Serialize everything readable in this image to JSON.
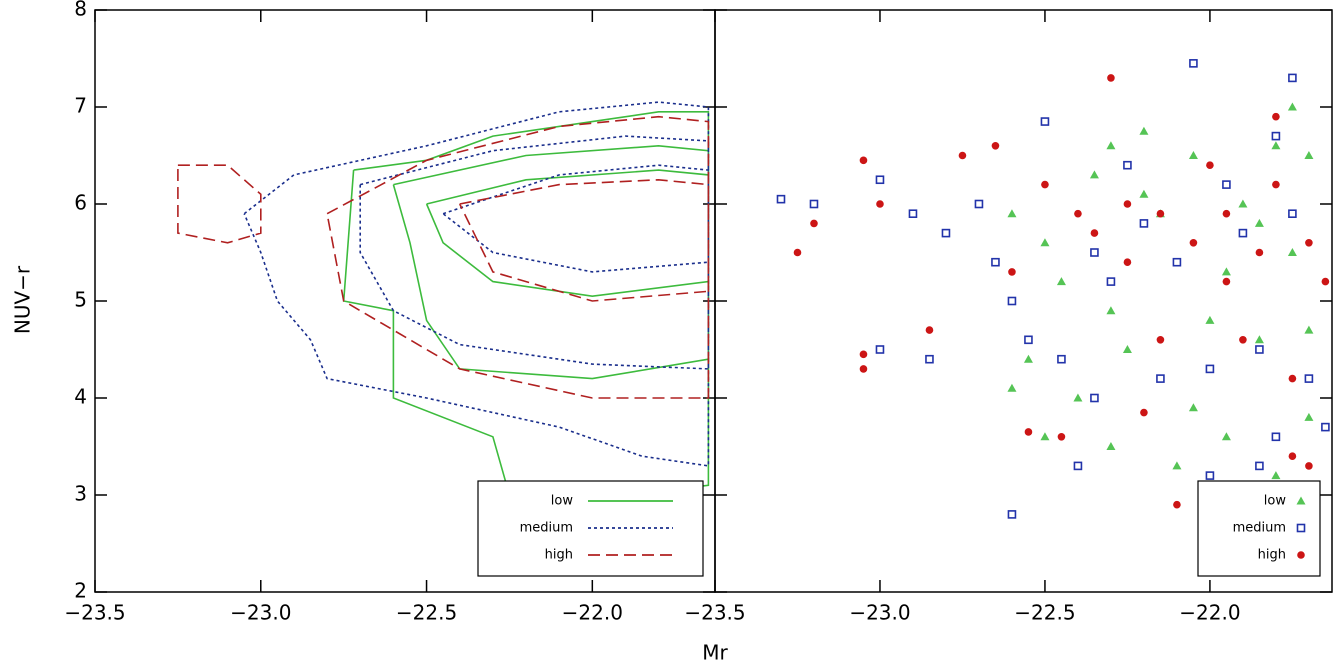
{
  "chart_data": [
    {
      "type": "line",
      "x_label": "Mr",
      "y_label": "NUV−r",
      "xlim": [
        -23.5,
        -21.63
      ],
      "ylim": [
        2,
        8
      ],
      "xticks": [
        {
          "value": -23.5,
          "label": "−23.5"
        },
        {
          "value": -23.0,
          "label": "−23.0"
        },
        {
          "value": -22.5,
          "label": "−22.5"
        },
        {
          "value": -22.0,
          "label": "−22.0"
        }
      ],
      "yticks": [
        2,
        3,
        4,
        5,
        6,
        7,
        8
      ],
      "legend": "lower right",
      "series": [
        {
          "name": "low",
          "color": "#3dbb3d",
          "dash": "solid",
          "x": [
            -22.72,
            -22.5,
            -22.3,
            -22.0,
            -21.8,
            -21.65,
            -21.65,
            -21.9,
            -22.25,
            -22.3,
            -22.6,
            -22.6,
            -22.75,
            -22.72,
            null,
            -22.6,
            -22.2,
            -21.8,
            -21.65,
            -21.65,
            -22.0,
            -22.4,
            -22.5,
            -22.55,
            -22.6,
            null,
            -22.5,
            -22.2,
            -21.8,
            -21.65,
            -21.65,
            -22.0,
            -22.3,
            -22.45,
            -22.5
          ],
          "values": [
            6.35,
            6.45,
            6.7,
            6.85,
            6.95,
            6.95,
            3.1,
            3.0,
            3.0,
            3.6,
            4.0,
            4.9,
            5.0,
            6.35,
            null,
            6.2,
            6.5,
            6.6,
            6.55,
            4.4,
            4.2,
            4.3,
            4.8,
            5.6,
            6.2,
            null,
            6.0,
            6.25,
            6.35,
            6.3,
            5.2,
            5.05,
            5.2,
            5.6,
            6.0
          ]
        },
        {
          "name": "medium",
          "color": "#1a2e8c",
          "dash": "dotted",
          "x": [
            -23.05,
            -22.9,
            -22.5,
            -22.1,
            -21.8,
            -21.65,
            -21.65,
            -21.85,
            -22.1,
            -22.5,
            -22.8,
            -22.85,
            -22.95,
            -23.0,
            -23.05,
            null,
            -22.7,
            -22.3,
            -21.9,
            -21.65,
            -21.65,
            -22.0,
            -22.4,
            -22.6,
            -22.7,
            -22.7,
            null,
            -22.45,
            -22.1,
            -21.8,
            -21.65,
            -21.65,
            -22.0,
            -22.3,
            -22.45
          ],
          "values": [
            5.9,
            6.3,
            6.6,
            6.95,
            7.05,
            7.0,
            3.3,
            3.4,
            3.7,
            4.0,
            4.2,
            4.6,
            5.0,
            5.5,
            5.9,
            null,
            6.2,
            6.55,
            6.7,
            6.65,
            4.3,
            4.35,
            4.55,
            4.9,
            5.5,
            6.2,
            null,
            5.9,
            6.3,
            6.4,
            6.35,
            5.4,
            5.3,
            5.5,
            5.9
          ]
        },
        {
          "name": "high",
          "color": "#b02020",
          "dash": "dashed",
          "x": [
            -23.25,
            -23.1,
            -23.0,
            -23.0,
            -23.1,
            -23.25,
            -23.25,
            null,
            -22.8,
            -22.5,
            -22.1,
            -21.8,
            -21.65,
            -21.65,
            -22.0,
            -22.4,
            -22.6,
            -22.75,
            -22.8,
            null,
            -22.4,
            -22.1,
            -21.8,
            -21.65,
            -21.65,
            -22.0,
            -22.3,
            -22.4
          ],
          "values": [
            6.4,
            6.4,
            6.1,
            5.7,
            5.6,
            5.7,
            6.4,
            null,
            5.9,
            6.45,
            6.8,
            6.9,
            6.85,
            4.0,
            4.0,
            4.3,
            4.7,
            5.0,
            5.9,
            null,
            6.0,
            6.2,
            6.25,
            6.2,
            5.1,
            5.0,
            5.3,
            6.0
          ]
        }
      ]
    },
    {
      "type": "scatter",
      "xlim": [
        -23.5,
        -21.63
      ],
      "ylim": [
        2,
        8
      ],
      "xticks": [
        {
          "value": -23.5,
          "label": "−23.5"
        },
        {
          "value": -23.0,
          "label": "−23.0"
        },
        {
          "value": -22.5,
          "label": "−22.5"
        },
        {
          "value": -22.0,
          "label": "−22.0"
        }
      ],
      "yticks": [
        2,
        3,
        4,
        5,
        6,
        7,
        8
      ],
      "legend": "lower right",
      "series": [
        {
          "name": "low",
          "color": "#55c455",
          "marker": "triangle",
          "x": [
            -22.35,
            -22.3,
            -22.2,
            -22.05,
            -21.9,
            -21.7,
            -21.75,
            -22.6,
            -22.45,
            -22.3,
            -22.25,
            -22.4,
            -22.3,
            -22.0,
            -22.05,
            -21.95,
            -21.85,
            -21.9,
            -22.0,
            -21.8,
            -21.7,
            -21.7,
            -22.1,
            -22.55,
            -22.6,
            -22.5,
            -22.15,
            -21.95,
            -21.8,
            -21.75,
            -21.7,
            -22.0,
            -22.2,
            -21.85,
            -22.5
          ],
          "values": [
            6.3,
            6.6,
            6.75,
            6.5,
            6.0,
            6.5,
            5.5,
            5.9,
            5.2,
            4.9,
            4.5,
            4.0,
            3.5,
            4.8,
            3.9,
            3.6,
            4.6,
            2.9,
            2.7,
            3.2,
            3.8,
            4.7,
            3.3,
            4.4,
            4.1,
            5.6,
            5.9,
            5.3,
            6.6,
            7.0,
            2.9,
            3.0,
            6.1,
            5.8,
            3.6
          ]
        },
        {
          "name": "medium",
          "color": "#2233aa",
          "marker": "square",
          "x": [
            -23.3,
            -23.2,
            -23.0,
            -23.0,
            -22.85,
            -22.9,
            -22.8,
            -22.7,
            -22.65,
            -22.6,
            -22.6,
            -22.5,
            -22.45,
            -22.4,
            -22.35,
            -22.35,
            -22.25,
            -22.2,
            -22.15,
            -22.1,
            -22.05,
            -22.0,
            -22.0,
            -21.95,
            -21.9,
            -21.85,
            -21.8,
            -21.8,
            -21.75,
            -21.75,
            -21.7,
            -21.65,
            -22.3,
            -21.85,
            -22.55
          ],
          "values": [
            6.05,
            6.0,
            6.25,
            4.5,
            4.4,
            5.9,
            5.7,
            6.0,
            5.4,
            5.0,
            2.8,
            6.85,
            4.4,
            3.3,
            4.0,
            5.5,
            6.4,
            5.8,
            4.2,
            5.4,
            7.45,
            4.3,
            3.2,
            6.2,
            5.7,
            4.5,
            3.6,
            6.7,
            7.3,
            5.9,
            4.2,
            3.7,
            5.2,
            3.3,
            4.6
          ]
        },
        {
          "name": "high",
          "color": "#cc1515",
          "marker": "circle",
          "x": [
            -23.25,
            -23.2,
            -23.05,
            -23.0,
            -23.05,
            -23.05,
            -22.85,
            -22.75,
            -22.65,
            -22.6,
            -22.55,
            -22.45,
            -22.4,
            -22.3,
            -22.25,
            -22.2,
            -22.15,
            -22.1,
            -22.05,
            -22.0,
            -21.95,
            -21.9,
            -21.85,
            -21.8,
            -21.75,
            -21.7,
            -21.7,
            -21.65,
            -22.35,
            -22.15,
            -21.95,
            -21.8,
            -22.5,
            -21.75,
            -22.25
          ],
          "values": [
            5.5,
            5.8,
            6.45,
            6.0,
            4.45,
            4.3,
            4.7,
            6.5,
            6.6,
            5.3,
            3.65,
            3.6,
            5.9,
            7.3,
            6.0,
            3.85,
            4.6,
            2.9,
            5.6,
            6.4,
            5.2,
            4.6,
            5.5,
            6.9,
            3.4,
            3.3,
            5.6,
            5.2,
            5.7,
            5.9,
            5.9,
            6.2,
            6.2,
            4.2,
            5.4
          ]
        }
      ]
    }
  ]
}
